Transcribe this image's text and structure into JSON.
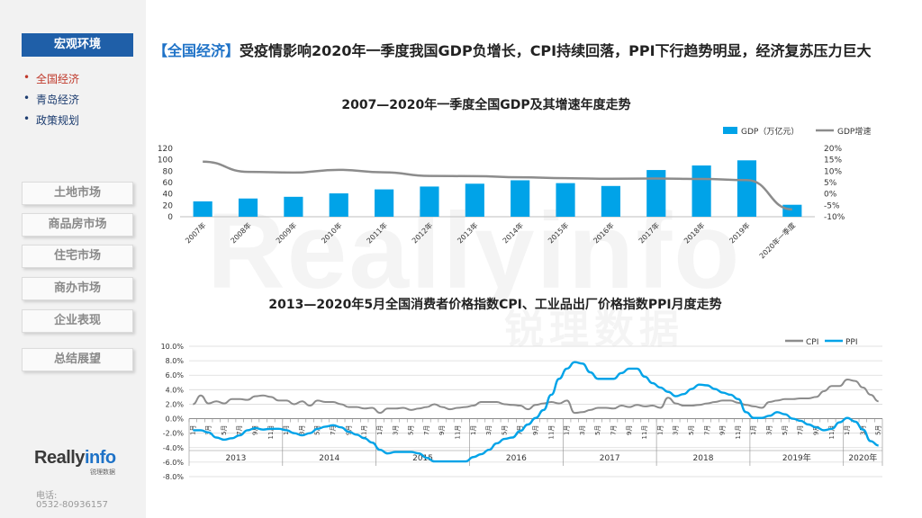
{
  "sidebar": {
    "active_section": "宏观环境",
    "sub_items": [
      "全国经济",
      "青岛经济",
      "政策规划"
    ],
    "nav": [
      "土地市场",
      "商品房市场",
      "住宅市场",
      "商办市场",
      "企业表现",
      "总结展望"
    ],
    "logo_main": "Really",
    "logo_accent": "info",
    "logo_sub": "锐理数据",
    "phone_label": "电话:",
    "phone_number": "0532-80936157"
  },
  "headline": {
    "tag": "【全国经济】",
    "text": "受疫情影响2020年一季度我国GDP负增长，CPI持续回落，PPI下行趋势明显，经济复苏压力巨大"
  },
  "watermark": {
    "latin": "Reallyinfo",
    "cn": "锐理数据"
  },
  "colors": {
    "gdp_bar": "#00a3e8",
    "gdp_line": "#8c8c8c",
    "cpi": "#8c8c8c",
    "ppi": "#00a3e8",
    "accent": "#1f5fa8"
  },
  "chart_data": [
    {
      "type": "bar",
      "title": "2007—2020年一季度全国GDP及其增速年度走势",
      "categories": [
        "2007年",
        "2008年",
        "2009年",
        "2010年",
        "2011年",
        "2012年",
        "2013年",
        "2014年",
        "2015年",
        "2016年",
        "2017年",
        "2018年",
        "2019年",
        "2020年一季度"
      ],
      "series": [
        {
          "name": "GDP（万亿元）",
          "type": "bar",
          "axis": "left",
          "values": [
            27,
            32,
            35,
            41,
            48,
            53,
            58,
            64,
            59,
            54,
            82,
            90,
            99,
            21
          ]
        },
        {
          "name": "GDP增速",
          "type": "line",
          "axis": "right",
          "values": [
            14.2,
            9.7,
            9.4,
            10.6,
            9.5,
            7.9,
            7.8,
            7.3,
            6.9,
            6.7,
            6.8,
            6.6,
            6.1,
            -6.8
          ]
        }
      ],
      "ylim_left": [
        0,
        120
      ],
      "yticks_left": [
        "0",
        "20",
        "40",
        "60",
        "80",
        "100",
        "120"
      ],
      "ylim_right": [
        -10,
        20
      ],
      "yticks_right": [
        "-10%",
        "-5%",
        "0%",
        "5%",
        "10%",
        "15%",
        "20%"
      ],
      "legend_position": "top-right"
    },
    {
      "type": "line",
      "title": "2013—2020年5月全国消费者价格指数CPI、工业品出厂价格指数PPI月度走势",
      "series": [
        {
          "name": "CPI",
          "values": [
            2.0,
            3.2,
            2.1,
            2.4,
            2.1,
            2.7,
            2.7,
            2.6,
            3.1,
            3.2,
            3.0,
            2.5,
            2.5,
            2.0,
            2.4,
            1.8,
            2.5,
            2.3,
            2.3,
            2.0,
            1.6,
            1.6,
            1.4,
            1.5,
            0.8,
            1.4,
            1.4,
            1.5,
            1.2,
            1.4,
            1.6,
            2.0,
            1.6,
            1.3,
            1.5,
            1.6,
            1.8,
            2.3,
            2.3,
            2.3,
            2.0,
            1.9,
            1.8,
            1.3,
            1.9,
            2.1,
            2.3,
            2.1,
            2.5,
            0.8,
            0.9,
            1.2,
            1.5,
            1.5,
            1.4,
            1.8,
            1.6,
            1.9,
            1.7,
            1.8,
            1.5,
            2.9,
            2.1,
            1.8,
            1.8,
            1.9,
            2.1,
            2.3,
            2.5,
            2.5,
            2.2,
            1.9,
            1.7,
            1.5,
            2.3,
            2.5,
            2.7,
            2.7,
            2.8,
            2.8,
            3.0,
            3.8,
            4.5,
            4.5,
            5.4,
            5.2,
            4.3,
            3.3,
            2.4
          ]
        },
        {
          "name": "PPI",
          "values": [
            -1.6,
            -1.6,
            -1.9,
            -2.6,
            -2.9,
            -2.7,
            -2.3,
            -1.6,
            -1.3,
            -1.5,
            -1.4,
            -1.4,
            -1.6,
            -2.0,
            -2.3,
            -2.0,
            -1.4,
            -1.1,
            -0.9,
            -1.2,
            -1.8,
            -2.2,
            -2.7,
            -3.3,
            -4.3,
            -4.8,
            -4.6,
            -4.6,
            -4.6,
            -4.8,
            -5.4,
            -5.9,
            -5.9,
            -5.9,
            -5.9,
            -5.9,
            -5.3,
            -4.9,
            -4.3,
            -3.4,
            -2.8,
            -2.6,
            -1.7,
            -0.8,
            0.1,
            1.2,
            3.3,
            5.5,
            6.9,
            7.8,
            7.6,
            6.4,
            5.5,
            5.5,
            5.5,
            6.3,
            6.9,
            6.9,
            5.8,
            4.9,
            4.3,
            3.7,
            3.1,
            3.4,
            4.1,
            4.7,
            4.6,
            4.1,
            3.6,
            3.3,
            2.7,
            0.9,
            0.1,
            0.1,
            0.4,
            0.9,
            0.6,
            0.0,
            -0.3,
            -0.8,
            -1.2,
            -1.6,
            -1.4,
            -0.5,
            0.1,
            -0.4,
            -1.5,
            -3.1,
            -3.7
          ]
        }
      ],
      "ylim": [
        -8,
        10
      ],
      "yticks": [
        "-8.0%",
        "-6.0%",
        "-4.0%",
        "-2.0%",
        "0.0%",
        "2.0%",
        "4.0%",
        "6.0%",
        "8.0%",
        "10.0%"
      ],
      "month_labels": [
        "1月",
        "3月",
        "5月",
        "7月",
        "9月",
        "11月"
      ],
      "last_month_label": "5月",
      "year_labels": [
        "2013",
        "2014",
        "2015",
        "2016",
        "2017",
        "2018",
        "2019年",
        "2020年"
      ],
      "legend_position": "top-right"
    }
  ]
}
